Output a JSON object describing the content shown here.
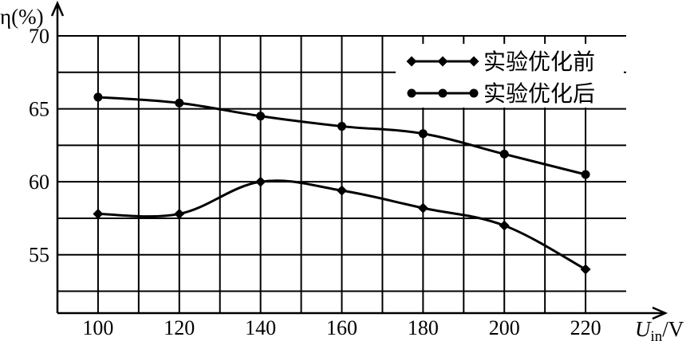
{
  "chart_data": {
    "type": "line",
    "x": [
      100,
      120,
      140,
      160,
      180,
      200,
      220
    ],
    "xlim": [
      90,
      230
    ],
    "ylim": [
      51,
      70
    ],
    "x_ticks": [
      "100",
      "120",
      "140",
      "160",
      "180",
      "200",
      "220"
    ],
    "y_ticks": [
      "55",
      "60",
      "65",
      "70"
    ],
    "ylabel": "η(%)",
    "xlabel": {
      "symbol": "U",
      "subscript": "in",
      "unit": "/V"
    },
    "grid": true,
    "legend_position": "top-right",
    "series": [
      {
        "name": "实验优化前",
        "marker": "diamond",
        "color": "#000000",
        "values": [
          57.8,
          57.8,
          60.0,
          59.4,
          58.2,
          57.0,
          54.0
        ]
      },
      {
        "name": "实验优化后",
        "marker": "circle",
        "color": "#000000",
        "values": [
          65.8,
          65.4,
          64.5,
          63.8,
          63.3,
          61.9,
          60.5
        ]
      }
    ]
  }
}
